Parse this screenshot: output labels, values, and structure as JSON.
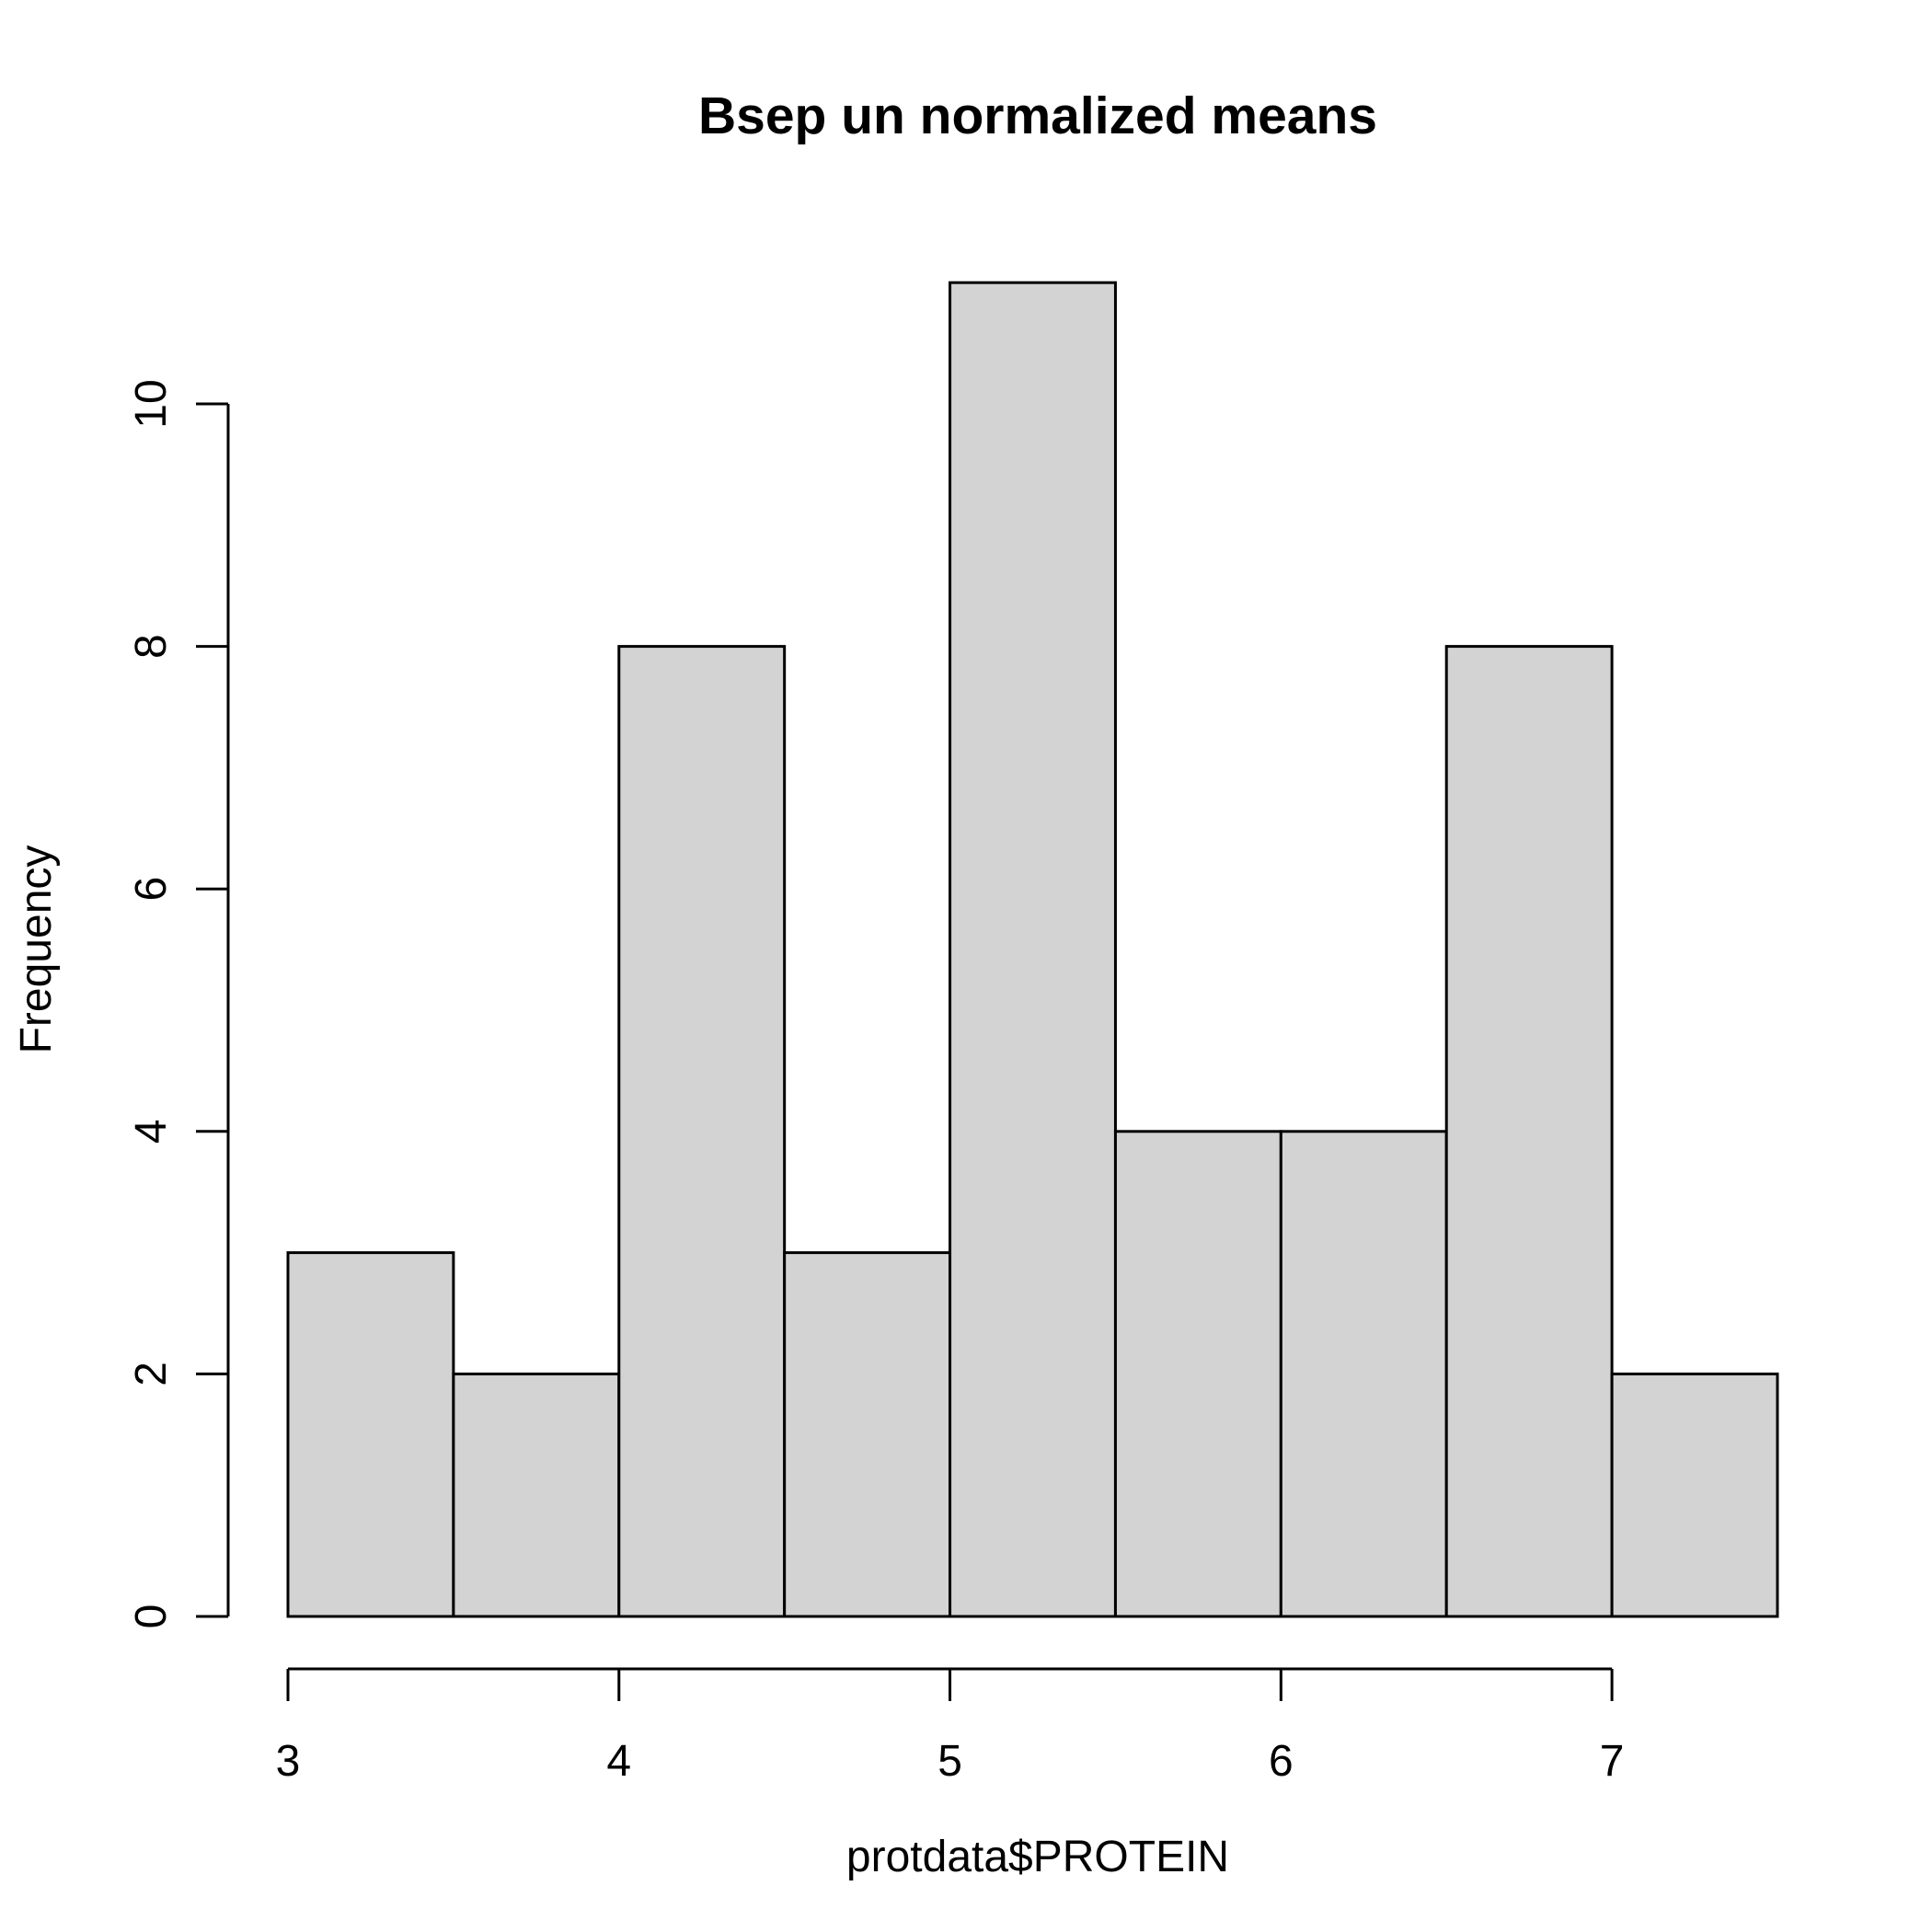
{
  "chart_data": {
    "type": "bar",
    "subtype": "histogram",
    "title": "Bsep un normalized means",
    "xlabel": "protdata$PROTEIN",
    "ylabel": "Frequency",
    "bins": [
      {
        "start": 3.0,
        "end": 3.5,
        "count": 3
      },
      {
        "start": 3.5,
        "end": 4.0,
        "count": 2
      },
      {
        "start": 4.0,
        "end": 4.5,
        "count": 8
      },
      {
        "start": 4.5,
        "end": 5.0,
        "count": 3
      },
      {
        "start": 5.0,
        "end": 5.5,
        "count": 11
      },
      {
        "start": 5.5,
        "end": 6.0,
        "count": 4
      },
      {
        "start": 6.0,
        "end": 6.5,
        "count": 4
      },
      {
        "start": 6.5,
        "end": 7.0,
        "count": 8
      },
      {
        "start": 7.0,
        "end": 7.5,
        "count": 2
      }
    ],
    "xticks": [
      "3",
      "4",
      "5",
      "6",
      "7"
    ],
    "yticks": [
      "0",
      "2",
      "4",
      "6",
      "8",
      "10"
    ],
    "xlim": [
      3,
      7.5
    ],
    "ylim": [
      0,
      11
    ],
    "grid": false,
    "colors": {
      "bar_fill": "#d3d3d3",
      "bar_stroke": "#000000"
    }
  }
}
